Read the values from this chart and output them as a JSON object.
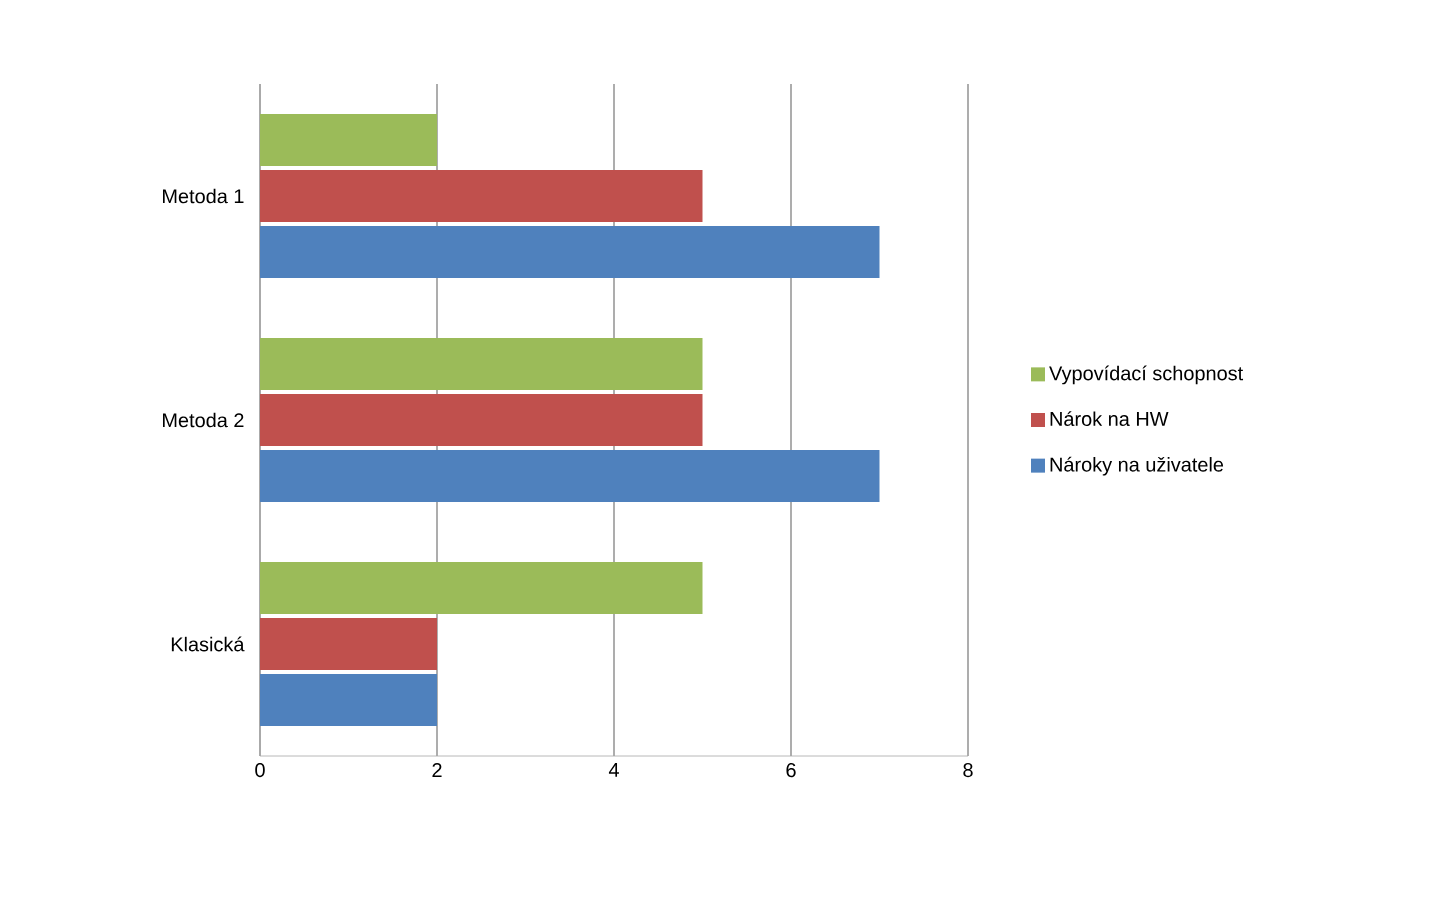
{
  "chart_data": {
    "type": "bar",
    "orientation": "horizontal",
    "categories": [
      "Metoda 1",
      "Metoda 2",
      "Klasická"
    ],
    "series": [
      {
        "name": "Vypovídací schopnost",
        "color": "#9bbb59",
        "values": [
          2,
          5,
          5
        ]
      },
      {
        "name": "Nárok na HW",
        "color": "#c0504d",
        "values": [
          5,
          5,
          2
        ]
      },
      {
        "name": "Nároky na uživatele",
        "color": "#4f81bd",
        "values": [
          7,
          7,
          2
        ]
      }
    ],
    "xlim": [
      0,
      8
    ],
    "xticks": [
      0,
      2,
      4,
      6,
      8
    ],
    "grid": "x",
    "legend": "right"
  }
}
